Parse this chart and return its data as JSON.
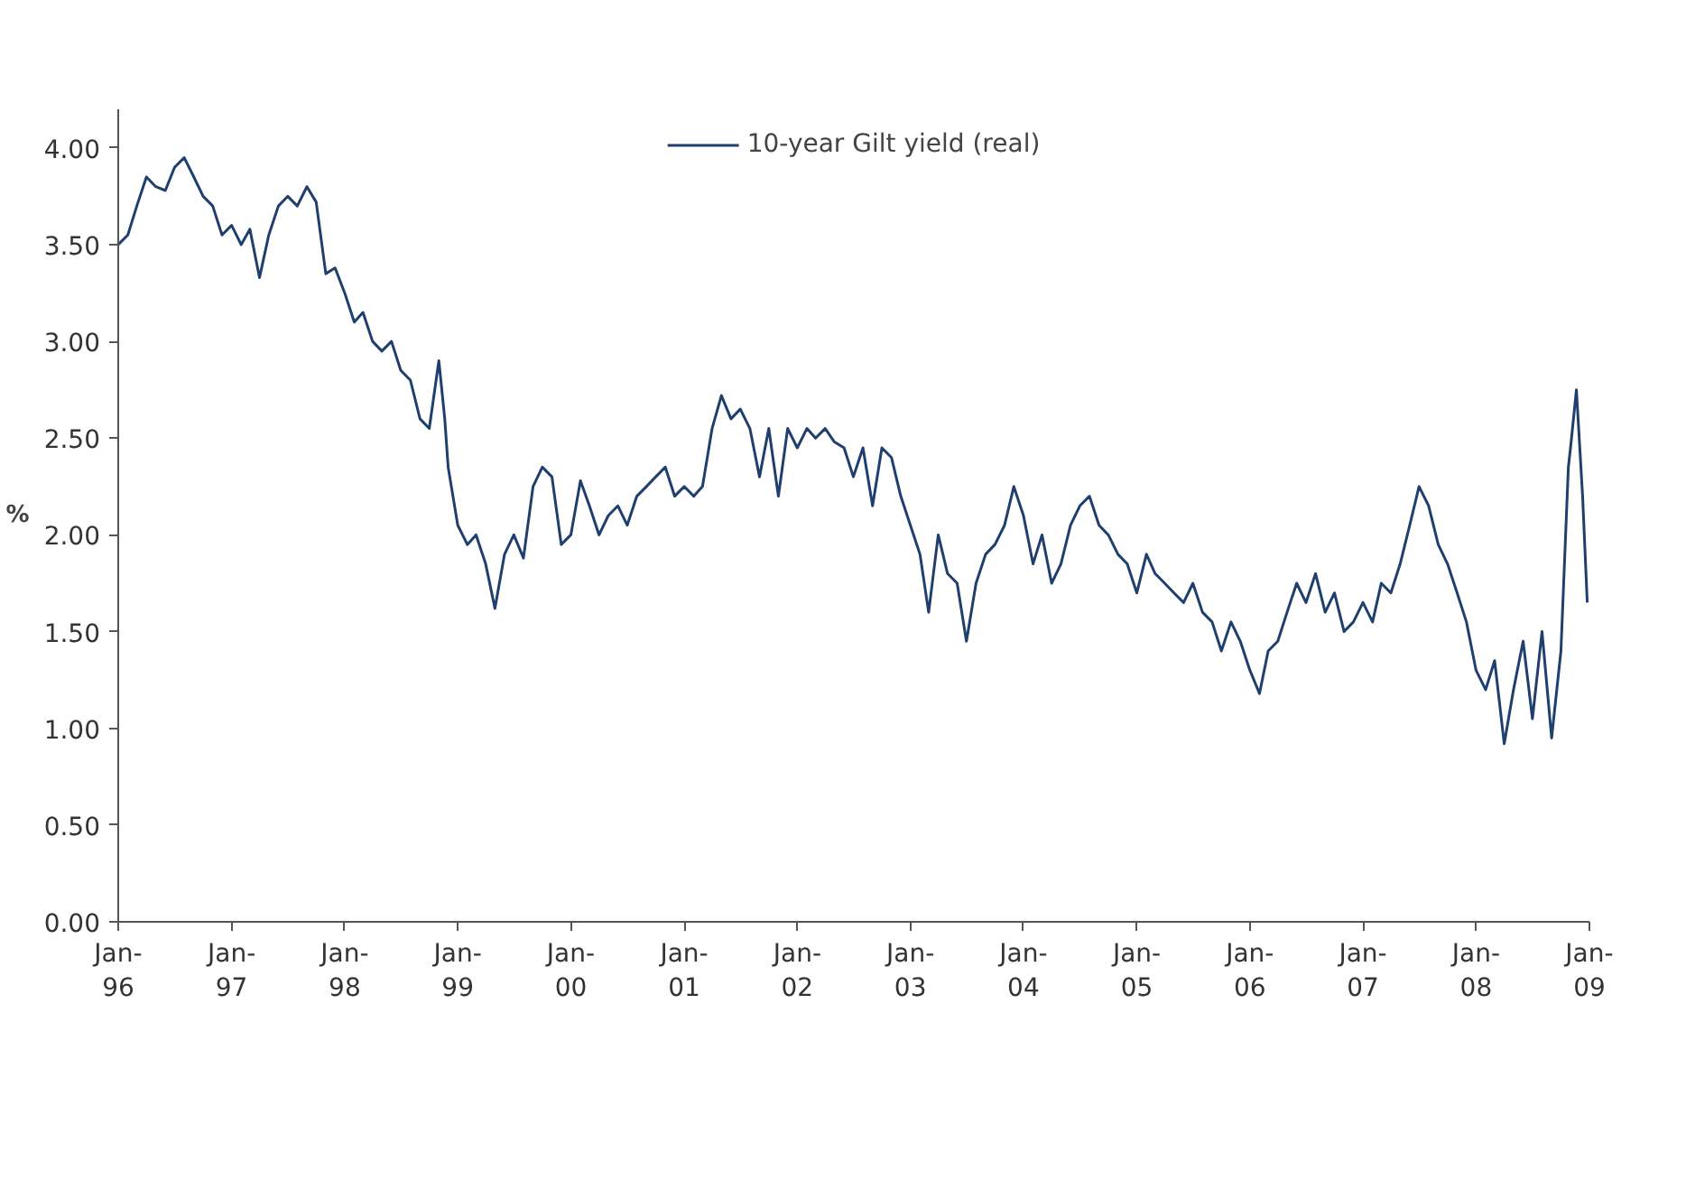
{
  "chart_data": {
    "type": "line",
    "ylabel": "%",
    "legend": "top",
    "grid": false,
    "marker": "none",
    "line_style": "solid",
    "xlim": [
      "1996-01-01",
      "2009-01-01"
    ],
    "xticks": [
      {
        "value": "1996-01",
        "label": "Jan-\n96"
      },
      {
        "value": "1997-01",
        "label": "Jan-\n97"
      },
      {
        "value": "1998-01",
        "label": "Jan-\n98"
      },
      {
        "value": "1999-01",
        "label": "Jan-\n99"
      },
      {
        "value": "2000-01",
        "label": "Jan-\n00"
      },
      {
        "value": "2001-01",
        "label": "Jan-\n01"
      },
      {
        "value": "2002-01",
        "label": "Jan-\n02"
      },
      {
        "value": "2003-01",
        "label": "Jan-\n03"
      },
      {
        "value": "2004-01",
        "label": "Jan-\n04"
      },
      {
        "value": "2005-01",
        "label": "Jan-\n05"
      },
      {
        "value": "2006-01",
        "label": "Jan-\n06"
      },
      {
        "value": "2007-01",
        "label": "Jan-\n07"
      },
      {
        "value": "2008-01",
        "label": "Jan-\n08"
      },
      {
        "value": "2009-01",
        "label": "Jan-\n09"
      }
    ],
    "ylim": [
      0,
      4.2
    ],
    "yticks": [
      {
        "value": 0,
        "label": "0.00"
      },
      {
        "value": 0.5,
        "label": "0.50"
      },
      {
        "value": 1,
        "label": "1.00"
      },
      {
        "value": 1.5,
        "label": "1.50"
      },
      {
        "value": 2,
        "label": "2.00"
      },
      {
        "value": 2.5,
        "label": "2.50"
      },
      {
        "value": 3,
        "label": "3.00"
      },
      {
        "value": 3.5,
        "label": "3.50"
      },
      {
        "value": 4,
        "label": "4.00"
      }
    ],
    "x": [
      "1996-01",
      "1996-02",
      "1996-03",
      "1996-04",
      "1996-05",
      "1996-06",
      "1996-07",
      "1996-08",
      "1996-09",
      "1996-10",
      "1996-11",
      "1996-12",
      "1997-01",
      "1997-02",
      "1997-03",
      "1997-04",
      "1997-05",
      "1997-06",
      "1997-07",
      "1997-08",
      "1997-09",
      "1997-10",
      "1997-11",
      "1997-12",
      "1998-01",
      "1998-02",
      "1998-03",
      "1998-04",
      "1998-05",
      "1998-06",
      "1998-07",
      "1998-08",
      "1998-09",
      "1998-10",
      "1998-11",
      "1998-11-20",
      "1998-12",
      "1999-01",
      "1999-02",
      "1999-03",
      "1999-04",
      "1999-05",
      "1999-06",
      "1999-07",
      "1999-08",
      "1999-09",
      "1999-10",
      "1999-11",
      "1999-12",
      "2000-01",
      "2000-02",
      "2000-03",
      "2000-04",
      "2000-05",
      "2000-06",
      "2000-07",
      "2000-08",
      "2000-09",
      "2000-10",
      "2000-11",
      "2000-12",
      "2001-01",
      "2001-02",
      "2001-03",
      "2001-04",
      "2001-05",
      "2001-06",
      "2001-07",
      "2001-08",
      "2001-09",
      "2001-10",
      "2001-11",
      "2001-12",
      "2002-01",
      "2002-02",
      "2002-03",
      "2002-04",
      "2002-05",
      "2002-06",
      "2002-07",
      "2002-08",
      "2002-09",
      "2002-10",
      "2002-11",
      "2002-12",
      "2003-01",
      "2003-02",
      "2003-03",
      "2003-04",
      "2003-05",
      "2003-06",
      "2003-07",
      "2003-08",
      "2003-09",
      "2003-10",
      "2003-11",
      "2003-12",
      "2004-01",
      "2004-02",
      "2004-03",
      "2004-04",
      "2004-05",
      "2004-06",
      "2004-07",
      "2004-08",
      "2004-09",
      "2004-10",
      "2004-11",
      "2004-12",
      "2005-01",
      "2005-02",
      "2005-03",
      "2005-04",
      "2005-05",
      "2005-06",
      "2005-07",
      "2005-08",
      "2005-09",
      "2005-10",
      "2005-11",
      "2005-12",
      "2006-01",
      "2006-02",
      "2006-03",
      "2006-04",
      "2006-05",
      "2006-06",
      "2006-07",
      "2006-08",
      "2006-09",
      "2006-10",
      "2006-11",
      "2006-12",
      "2007-01",
      "2007-02",
      "2007-03",
      "2007-04",
      "2007-05",
      "2007-06",
      "2007-07",
      "2007-08",
      "2007-09",
      "2007-10",
      "2007-11",
      "2007-12",
      "2008-01",
      "2008-02",
      "2008-03",
      "2008-04",
      "2008-05",
      "2008-06",
      "2008-07",
      "2008-08",
      "2008-09",
      "2008-10",
      "2008-10-25",
      "2008-11",
      "2008-11-20",
      "2008-12-10",
      "2008-12-25"
    ],
    "series": [
      {
        "name": "10-year Gilt yield (real)",
        "color": "#1f3f6e",
        "values": [
          3.5,
          3.55,
          3.7,
          3.85,
          3.8,
          3.78,
          3.9,
          3.95,
          3.85,
          3.75,
          3.7,
          3.55,
          3.6,
          3.5,
          3.58,
          3.33,
          3.55,
          3.7,
          3.75,
          3.7,
          3.8,
          3.72,
          3.35,
          3.38,
          3.25,
          3.1,
          3.15,
          3.0,
          2.95,
          3.0,
          2.85,
          2.8,
          2.6,
          2.55,
          2.9,
          2.6,
          2.35,
          2.05,
          1.95,
          2.0,
          1.85,
          1.62,
          1.9,
          2.0,
          1.88,
          2.25,
          2.35,
          2.3,
          1.95,
          2.0,
          2.28,
          2.15,
          2.0,
          2.1,
          2.15,
          2.05,
          2.2,
          2.25,
          2.3,
          2.35,
          2.2,
          2.25,
          2.2,
          2.25,
          2.55,
          2.72,
          2.6,
          2.65,
          2.55,
          2.3,
          2.55,
          2.2,
          2.55,
          2.45,
          2.55,
          2.5,
          2.55,
          2.48,
          2.45,
          2.3,
          2.45,
          2.15,
          2.45,
          2.4,
          2.2,
          2.05,
          1.9,
          1.6,
          2.0,
          1.8,
          1.75,
          1.45,
          1.75,
          1.9,
          1.95,
          2.05,
          2.25,
          2.1,
          1.85,
          2.0,
          1.75,
          1.85,
          2.05,
          2.15,
          2.2,
          2.05,
          2.0,
          1.9,
          1.85,
          1.7,
          1.9,
          1.8,
          1.75,
          1.7,
          1.65,
          1.75,
          1.6,
          1.55,
          1.4,
          1.55,
          1.45,
          1.3,
          1.18,
          1.4,
          1.45,
          1.6,
          1.75,
          1.65,
          1.8,
          1.6,
          1.7,
          1.5,
          1.55,
          1.65,
          1.55,
          1.75,
          1.7,
          1.85,
          2.05,
          2.25,
          2.15,
          1.95,
          1.85,
          1.7,
          1.55,
          1.3,
          1.2,
          1.35,
          0.92,
          1.2,
          1.45,
          1.05,
          1.5,
          0.95,
          1.4,
          2.35,
          2.45,
          2.75,
          2.2,
          1.65
        ]
      }
    ]
  }
}
